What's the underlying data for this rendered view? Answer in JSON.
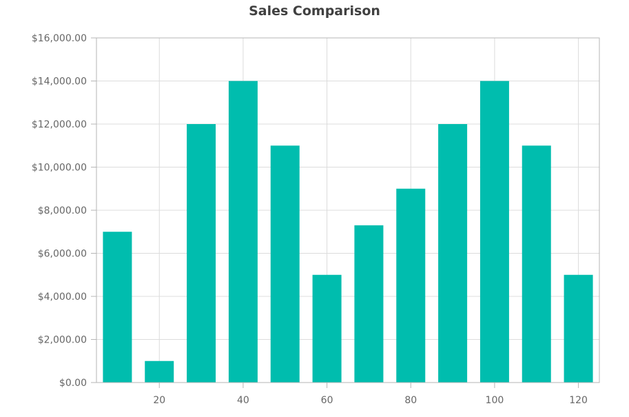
{
  "chart_data": {
    "type": "bar",
    "title": "Sales Comparison",
    "xlabel": "",
    "ylabel": "",
    "x": [
      10,
      20,
      30,
      40,
      50,
      60,
      70,
      80,
      90,
      100,
      110,
      120
    ],
    "values": [
      7000,
      1000,
      12000,
      14000,
      11000,
      5000,
      7300,
      9000,
      12000,
      14000,
      11000,
      5000
    ],
    "ylim": [
      0,
      16000
    ],
    "xlim": [
      5,
      125
    ],
    "yticks": [
      0,
      2000,
      4000,
      6000,
      8000,
      10000,
      12000,
      14000,
      16000
    ],
    "ytick_labels": [
      "$0.00",
      "$2,000.00",
      "$4,000.00",
      "$6,000.00",
      "$8,000.00",
      "$10,000.00",
      "$12,000.00",
      "$14,000.00",
      "$16,000.00"
    ],
    "xticks": [
      20,
      40,
      60,
      80,
      100,
      120
    ],
    "xtick_labels": [
      "20",
      "40",
      "60",
      "80",
      "100",
      "120"
    ],
    "grid": true,
    "legend": "none",
    "bar_color": "#00BDAE",
    "grid_color": "#dcdcdc",
    "axis_color": "#b5b5b5"
  }
}
